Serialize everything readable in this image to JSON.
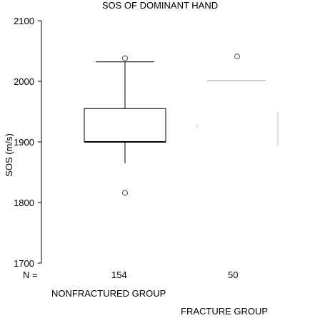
{
  "chart_data": {
    "type": "boxplot",
    "title": "SOS OF DOMINANT HAND",
    "ylabel": "SOS (m/s)",
    "ylim": [
      1700,
      2100
    ],
    "yticks": [
      1700,
      1800,
      1900,
      2000,
      2100
    ],
    "n_label": "N =",
    "groups": [
      {
        "name": "NONFRACTURED GROUP",
        "n": "154",
        "whisker_low": 1865,
        "q1": 1900,
        "median": 1900,
        "q3": 1955,
        "whisker_high": 2032,
        "outliers": [
          2038,
          1816
        ]
      },
      {
        "name": "FRACTURE GROUP",
        "n": "50",
        "whisker_low": 1885,
        "q1": 1940,
        "median": 2001,
        "q3": 2001,
        "whisker_high": 2001,
        "outliers": [
          2041
        ]
      }
    ],
    "grid": false,
    "legend": "none"
  }
}
